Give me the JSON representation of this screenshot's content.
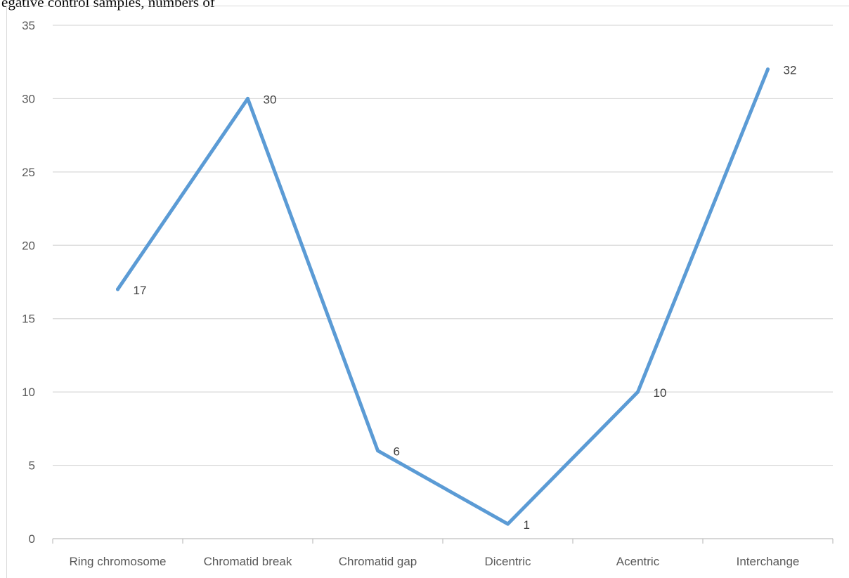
{
  "header": {
    "cutoff_text": "egative control samples, numbers of"
  },
  "chart_data": {
    "type": "line",
    "title": "",
    "xlabel": "",
    "ylabel": "",
    "categories": [
      "Ring chromosome",
      "Chromatid break",
      "Chromatid gap",
      "Dicentric",
      "Acentric",
      "Interchange"
    ],
    "series": [
      {
        "values": [
          17,
          30,
          6,
          1,
          10,
          32
        ]
      }
    ],
    "data_labels": [
      "17",
      "30",
      "6",
      "1",
      "10",
      "32"
    ],
    "ylim": [
      0,
      35
    ],
    "yticks": [
      0,
      5,
      10,
      15,
      20,
      25,
      30,
      35
    ],
    "grid": true,
    "legend": "none",
    "colors": {
      "line": "#5b9bd5",
      "grid": "#d9d9d9",
      "axis": "#bfbfbf"
    }
  }
}
